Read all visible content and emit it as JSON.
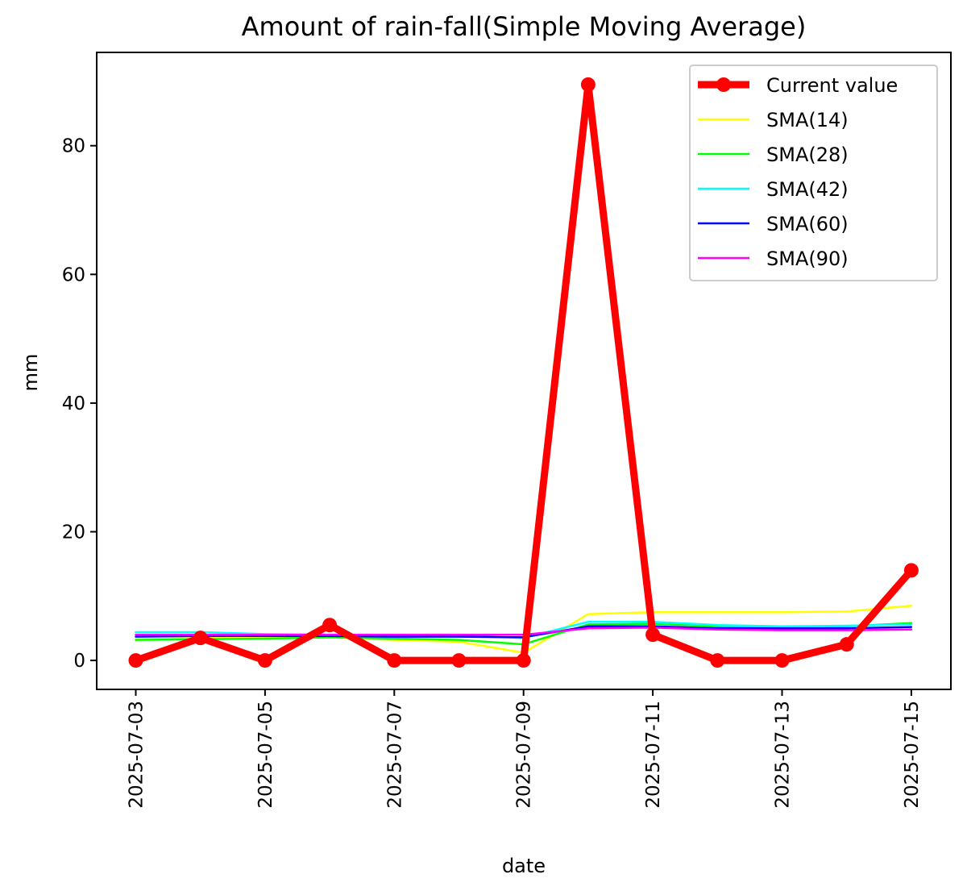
{
  "chart_data": {
    "type": "line",
    "title": "Amount of rain-fall(Simple Moving Average)",
    "xlabel": "date",
    "ylabel": "mm",
    "x": [
      "2025-07-03",
      "2025-07-04",
      "2025-07-05",
      "2025-07-06",
      "2025-07-07",
      "2025-07-08",
      "2025-07-09",
      "2025-07-10",
      "2025-07-11",
      "2025-07-12",
      "2025-07-13",
      "2025-07-14",
      "2025-07-15"
    ],
    "xticks": [
      "2025-07-03",
      "2025-07-05",
      "2025-07-07",
      "2025-07-09",
      "2025-07-11",
      "2025-07-13",
      "2025-07-15"
    ],
    "yticks": [
      0,
      20,
      40,
      60,
      80
    ],
    "ylim": [
      -4.5,
      94.5
    ],
    "grid": false,
    "legend_position": "top-right",
    "series": [
      {
        "name": "Current value",
        "color": "#ff0000",
        "markers": true,
        "values": [
          0,
          3.5,
          0,
          5.5,
          0,
          0,
          0,
          89.5,
          4,
          0,
          0,
          2.5,
          14
        ]
      },
      {
        "name": "SMA(14)",
        "color": "#ffff00",
        "values": [
          3.3,
          3.5,
          3.6,
          3.6,
          3.2,
          2.9,
          1.2,
          7.2,
          7.5,
          7.5,
          7.5,
          7.6,
          8.5
        ]
      },
      {
        "name": "SMA(28)",
        "color": "#00ff00",
        "values": [
          3.2,
          3.3,
          3.4,
          3.6,
          3.4,
          3.2,
          2.5,
          5.6,
          5.7,
          5.3,
          5.2,
          5.3,
          5.8
        ]
      },
      {
        "name": "SMA(42)",
        "color": "#00ffff",
        "values": [
          4.4,
          4.4,
          4.1,
          4.0,
          3.9,
          3.8,
          3.5,
          6.0,
          6.0,
          5.5,
          5.3,
          5.4,
          5.6
        ]
      },
      {
        "name": "SMA(60)",
        "color": "#0000ff",
        "values": [
          3.7,
          3.8,
          3.8,
          3.8,
          3.7,
          3.7,
          3.6,
          5.3,
          5.3,
          5.0,
          5.0,
          5.0,
          5.2
        ]
      },
      {
        "name": "SMA(90)",
        "color": "#ff00ff",
        "values": [
          4.0,
          4.0,
          4.0,
          4.0,
          4.0,
          4.0,
          4.0,
          5.0,
          5.1,
          4.8,
          4.7,
          4.7,
          4.8
        ]
      }
    ]
  }
}
